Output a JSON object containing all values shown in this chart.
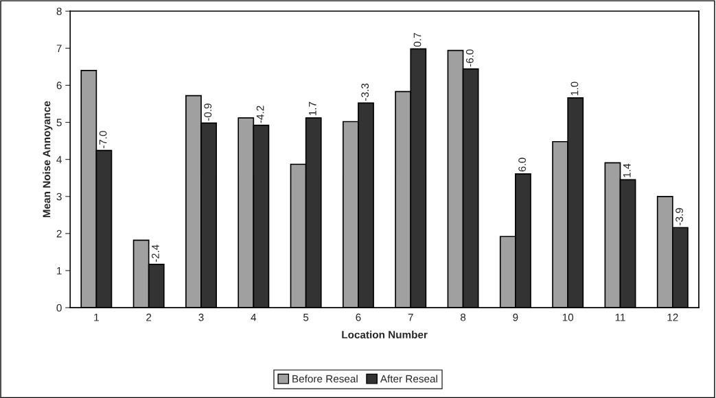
{
  "chart_data": {
    "type": "bar",
    "xlabel": "Location Number",
    "ylabel": "Mean Noise Annoyance",
    "categories": [
      "1",
      "2",
      "3",
      "4",
      "5",
      "6",
      "7",
      "8",
      "9",
      "10",
      "11",
      "12"
    ],
    "series": [
      {
        "name": "Before Reseal",
        "color": "#a0a0a0",
        "values": [
          6.4,
          1.82,
          5.72,
          5.12,
          3.87,
          5.02,
          5.83,
          6.94,
          1.92,
          4.48,
          3.91,
          3.0
        ]
      },
      {
        "name": "After Reseal",
        "color": "#333333",
        "values": [
          4.24,
          1.17,
          4.98,
          4.92,
          5.12,
          5.52,
          6.98,
          6.44,
          3.61,
          5.66,
          3.45,
          2.16
        ]
      }
    ],
    "annotations": [
      {
        "text": "-7.0",
        "x": "1",
        "y": 4.24
      },
      {
        "text": "-2.4",
        "x": "2",
        "y": 1.17
      },
      {
        "text": "-0.9",
        "x": "3",
        "y": 4.98
      },
      {
        "text": "-4.2",
        "x": "4",
        "y": 4.92
      },
      {
        "text": "1.7",
        "x": "5",
        "y": 5.12
      },
      {
        "text": "-3.3",
        "x": "6",
        "y": 5.52
      },
      {
        "text": "0.7",
        "x": "7",
        "y": 6.98
      },
      {
        "text": "-6.0",
        "x": "8",
        "y": 6.44
      },
      {
        "text": "6.0",
        "x": "9",
        "y": 3.61
      },
      {
        "text": "1.0",
        "x": "10",
        "y": 5.66
      },
      {
        "text": "1.4",
        "x": "11",
        "y": 3.45
      },
      {
        "text": "-3.9",
        "x": "12",
        "y": 2.16
      }
    ],
    "ylim": [
      0,
      8
    ],
    "yticks": [
      0,
      1,
      2,
      3,
      4,
      5,
      6,
      7,
      8
    ],
    "grid": false,
    "legend": "bottom"
  }
}
